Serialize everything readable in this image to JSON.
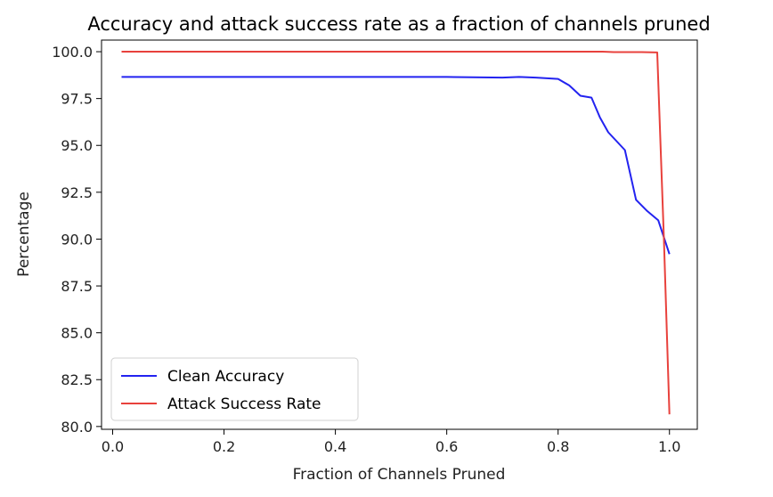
{
  "chart_data": {
    "type": "line",
    "title": "Accuracy and attack success rate as a fraction of channels pruned",
    "xlabel": "Fraction of Channels Pruned",
    "ylabel": "Percentage",
    "xlim": [
      -0.02,
      1.05
    ],
    "ylim": [
      79.85,
      100.62
    ],
    "xticks": [
      0.0,
      0.2,
      0.4,
      0.6,
      0.8,
      1.0
    ],
    "xtick_labels": [
      "0.0",
      "0.2",
      "0.4",
      "0.6",
      "0.8",
      "1.0"
    ],
    "yticks": [
      80.0,
      82.5,
      85.0,
      87.5,
      90.0,
      92.5,
      95.0,
      97.5,
      100.0
    ],
    "ytick_labels": [
      "80.0",
      "82.5",
      "85.0",
      "87.5",
      "90.0",
      "92.5",
      "95.0",
      "97.5",
      "100.0"
    ],
    "grid": false,
    "legend_position": "lower-left",
    "series": [
      {
        "name": "Clean Accuracy",
        "color": "#2323f0",
        "x": [
          0.016,
          0.1,
          0.2,
          0.3,
          0.4,
          0.5,
          0.6,
          0.7,
          0.73,
          0.76,
          0.8,
          0.82,
          0.84,
          0.86,
          0.875,
          0.89,
          0.92,
          0.94,
          0.96,
          0.98,
          1.0
        ],
        "y": [
          98.65,
          98.65,
          98.65,
          98.65,
          98.65,
          98.65,
          98.65,
          98.62,
          98.65,
          98.62,
          98.55,
          98.2,
          97.65,
          97.55,
          96.5,
          95.7,
          94.75,
          92.1,
          91.5,
          91.0,
          89.2
        ]
      },
      {
        "name": "Attack Success Rate",
        "color": "#e8413c",
        "x": [
          0.016,
          0.2,
          0.4,
          0.6,
          0.8,
          0.88,
          0.9,
          0.95,
          0.978,
          0.99,
          1.0
        ],
        "y": [
          100.0,
          100.0,
          100.0,
          100.0,
          100.0,
          100.0,
          99.98,
          99.98,
          99.96,
          90.0,
          80.65
        ]
      }
    ]
  }
}
